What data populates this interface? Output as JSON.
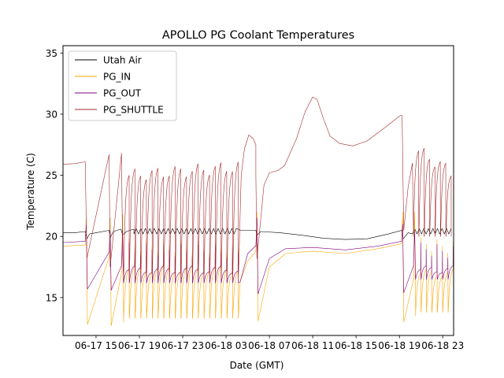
{
  "chart_data": {
    "type": "line",
    "title": "APOLLO PG Coolant Temperatures",
    "xlabel": "Date (GMT)",
    "ylabel": "Temperature (C)",
    "x_units": "hours since 06-17 00:00 GMT",
    "xlim": [
      11.95,
      48.0
    ],
    "ylim": [
      11.9,
      35.6
    ],
    "grid": false,
    "legend_position": "top-left",
    "x_ticks": [
      {
        "value": 15,
        "label": "06-17 15"
      },
      {
        "value": 19,
        "label": "06-17 19"
      },
      {
        "value": 23,
        "label": "06-17 23"
      },
      {
        "value": 27,
        "label": "06-18 03"
      },
      {
        "value": 31,
        "label": "06-18 07"
      },
      {
        "value": 35,
        "label": "06-18 11"
      },
      {
        "value": 39,
        "label": "06-18 15"
      },
      {
        "value": 43,
        "label": "06-18 19"
      },
      {
        "value": 47,
        "label": "06-18 23"
      }
    ],
    "y_ticks": [
      {
        "value": 15,
        "label": "15"
      },
      {
        "value": 20,
        "label": "20"
      },
      {
        "value": 25,
        "label": "25"
      },
      {
        "value": 30,
        "label": "30"
      },
      {
        "value": 35,
        "label": "35"
      }
    ],
    "series": [
      {
        "name": "Utah Air",
        "color": "#000000",
        "points": [
          [
            11.95,
            20.3
          ],
          [
            13.0,
            20.3
          ],
          [
            14.0,
            20.4
          ],
          [
            14.15,
            19.8
          ],
          [
            14.4,
            20.2
          ],
          [
            16.2,
            20.5
          ],
          [
            16.3,
            19.9
          ],
          [
            16.6,
            20.4
          ],
          [
            17.3,
            20.6
          ],
          [
            17.45,
            20.1
          ],
          [
            17.8,
            20.4
          ],
          [
            18.5,
            20.6
          ],
          [
            28.3,
            20.5
          ],
          [
            29.0,
            20.5
          ],
          [
            29.75,
            20.5
          ],
          [
            29.85,
            20.1
          ],
          [
            30.2,
            20.4
          ],
          [
            32,
            20.3
          ],
          [
            34,
            20.1
          ],
          [
            36,
            19.85
          ],
          [
            38,
            19.75
          ],
          [
            40,
            19.8
          ],
          [
            42,
            20.2
          ],
          [
            43.2,
            20.5
          ],
          [
            43.35,
            19.8
          ],
          [
            43.8,
            20.3
          ],
          [
            44.2,
            20.5
          ],
          [
            48.0,
            20.5
          ]
        ],
        "oscillation": {
          "from": 18.5,
          "to": 28.3,
          "period_hours": 0.42,
          "amplitude": 0.25,
          "also": [
            44.2,
            48.0
          ]
        }
      },
      {
        "name": "PG_IN",
        "color": "#FFA500",
        "points": [
          [
            11.95,
            19.2
          ],
          [
            14.0,
            19.3
          ],
          [
            14.1,
            21.5
          ],
          [
            14.2,
            12.8
          ],
          [
            16.2,
            18.3
          ],
          [
            16.3,
            21.5
          ],
          [
            16.4,
            12.7
          ],
          [
            17.35,
            17.0
          ],
          [
            17.45,
            21.8
          ],
          [
            17.55,
            13.0
          ],
          [
            29.75,
            18.8
          ],
          [
            29.85,
            22.0
          ],
          [
            29.95,
            13.1
          ],
          [
            31.0,
            17.5
          ],
          [
            32.5,
            18.6
          ],
          [
            35,
            18.8
          ],
          [
            38,
            18.6
          ],
          [
            41,
            19.0
          ],
          [
            43.2,
            19.4
          ],
          [
            43.3,
            22.0
          ],
          [
            43.4,
            13.0
          ],
          [
            44.3,
            16.5
          ],
          [
            44.4,
            22.0
          ],
          [
            44.5,
            13.5
          ]
        ],
        "cycle_region": {
          "from": 17.55,
          "to": 28.3,
          "period_hours": 0.53,
          "min": 13.3,
          "max_base": 17.3,
          "spike_max": 19.8
        },
        "cycle_region_2": {
          "from": 44.5,
          "to": 48.0,
          "period_hours": 0.5,
          "min": 13.8,
          "max_base": 17.0,
          "spike_max": 19.9
        }
      },
      {
        "name": "PG_OUT",
        "color": "#800080",
        "points": [
          [
            11.95,
            19.5
          ],
          [
            14.0,
            19.6
          ],
          [
            14.1,
            21.0
          ],
          [
            14.2,
            15.7
          ],
          [
            16.2,
            18.7
          ],
          [
            16.3,
            20.5
          ],
          [
            16.4,
            15.6
          ],
          [
            17.35,
            17.6
          ],
          [
            17.45,
            20.5
          ],
          [
            17.55,
            16.2
          ],
          [
            29.75,
            19.2
          ],
          [
            29.85,
            21.5
          ],
          [
            29.95,
            15.3
          ],
          [
            31.0,
            18.2
          ],
          [
            32.5,
            19.0
          ],
          [
            35,
            19.1
          ],
          [
            38,
            18.9
          ],
          [
            41,
            19.2
          ],
          [
            43.2,
            19.6
          ],
          [
            43.3,
            21.0
          ],
          [
            43.4,
            15.4
          ],
          [
            44.3,
            17.6
          ],
          [
            44.4,
            20.5
          ],
          [
            44.5,
            16.5
          ]
        ],
        "cycle_region": {
          "from": 17.55,
          "to": 28.3,
          "period_hours": 0.53,
          "min": 16.2,
          "max_base": 17.3,
          "spike_max": 19.5
        },
        "cycle_region_2": {
          "from": 44.5,
          "to": 48.0,
          "period_hours": 0.5,
          "min": 16.5,
          "max_base": 17.3,
          "spike_max": 19.5
        }
      },
      {
        "name": "PG_SHUTTLE",
        "color": "#A52A2A",
        "points": [
          [
            11.95,
            25.9
          ],
          [
            13.0,
            25.95
          ],
          [
            14.0,
            26.1
          ],
          [
            14.15,
            18.2
          ],
          [
            16.2,
            26.7
          ],
          [
            16.3,
            17.5
          ],
          [
            17.35,
            26.8
          ],
          [
            17.45,
            18.5
          ],
          [
            29.75,
            24.9
          ],
          [
            29.85,
            18.2
          ],
          [
            30.5,
            24.2
          ],
          [
            31.0,
            25.2
          ],
          [
            31.8,
            25.4
          ],
          [
            32.4,
            25.8
          ],
          [
            33.5,
            28.0
          ],
          [
            34.3,
            30.2
          ],
          [
            35.0,
            31.4
          ],
          [
            35.4,
            31.2
          ],
          [
            36.0,
            29.6
          ],
          [
            36.6,
            28.2
          ],
          [
            37.5,
            27.6
          ],
          [
            38.7,
            27.4
          ],
          [
            40.0,
            27.8
          ],
          [
            41.5,
            28.8
          ],
          [
            43.1,
            29.9
          ],
          [
            43.25,
            29.9
          ],
          [
            43.4,
            20.5
          ],
          [
            43.8,
            24.0
          ],
          [
            44.2,
            26.0
          ]
        ],
        "hump": [
          [
            28.4,
            25.0
          ],
          [
            28.7,
            27.2
          ],
          [
            29.1,
            28.3
          ],
          [
            29.5,
            28.0
          ],
          [
            29.75,
            27.5
          ]
        ],
        "cycle_region": {
          "from": 17.55,
          "to": 28.3,
          "period_hours": 0.53,
          "min": 16.5,
          "max_start": 25.0,
          "max_end": 25.7
        },
        "cycle_region_2": {
          "from": 44.3,
          "to": 48.0,
          "period_hours": 0.5,
          "min": 20.0,
          "max_start": 27.0,
          "max_end": 25.3
        }
      }
    ]
  }
}
